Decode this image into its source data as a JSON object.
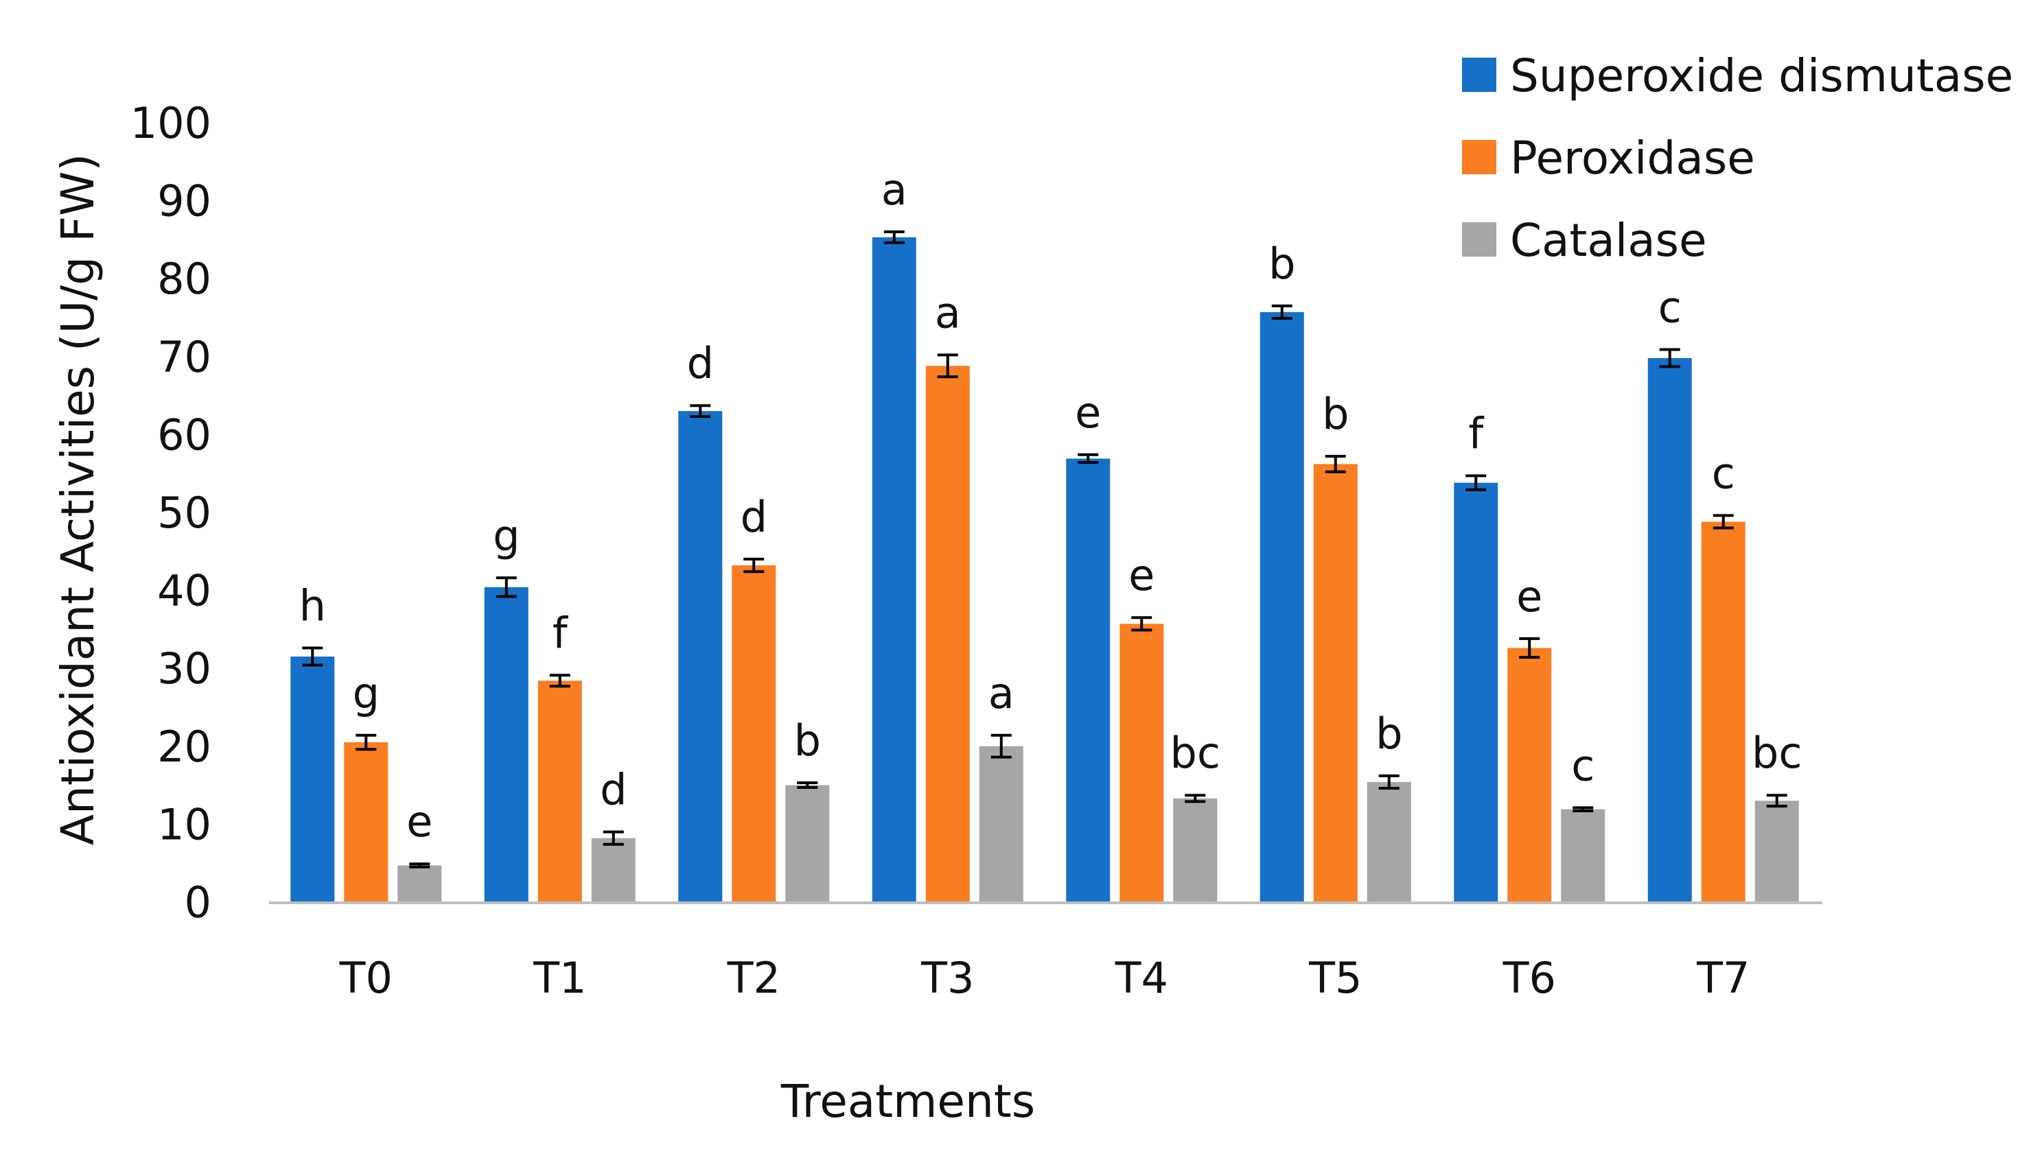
{
  "chart_data": {
    "type": "bar",
    "title": "",
    "xlabel": "Treatments",
    "ylabel": "Antioxidant  Activities (U/g FW)",
    "ylim": [
      0,
      100
    ],
    "yticks": [
      "0",
      "10",
      "20",
      "30",
      "40",
      "50",
      "60",
      "70",
      "80",
      "90",
      "100"
    ],
    "categories": [
      "T0",
      "T1",
      "T2",
      "T3",
      "T4",
      "T5",
      "T6",
      "T7"
    ],
    "legend_position": "top-right",
    "grid": false,
    "series": [
      {
        "name": "Superoxide dismutase",
        "color": "#1670C8",
        "values": [
          31.6,
          40.5,
          63.1,
          85.4,
          57.0,
          75.8,
          53.9,
          69.9
        ],
        "errors": [
          1.1,
          1.2,
          0.7,
          0.7,
          0.5,
          0.8,
          0.9,
          1.1
        ],
        "labels": [
          "h",
          "g",
          "d",
          "a",
          "e",
          "b",
          "f",
          "c"
        ]
      },
      {
        "name": "Peroxidase",
        "color": "#F97E22",
        "values": [
          20.6,
          28.5,
          43.3,
          68.9,
          35.8,
          56.3,
          32.7,
          48.9
        ],
        "errors": [
          0.9,
          0.7,
          0.8,
          1.4,
          0.8,
          1.0,
          1.2,
          0.8
        ],
        "labels": [
          "g",
          "f",
          "d",
          "a",
          "e",
          "b",
          "e",
          "c"
        ]
      },
      {
        "name": "Catalase",
        "color": "#A6A6A6",
        "values": [
          4.8,
          8.3,
          15.1,
          20.1,
          13.4,
          15.5,
          12.0,
          13.1
        ],
        "errors": [
          0.2,
          0.8,
          0.3,
          1.4,
          0.4,
          0.8,
          0.2,
          0.7
        ],
        "labels": [
          "e",
          "d",
          "b",
          "a",
          "bc",
          "b",
          "c",
          "bc"
        ]
      }
    ]
  }
}
